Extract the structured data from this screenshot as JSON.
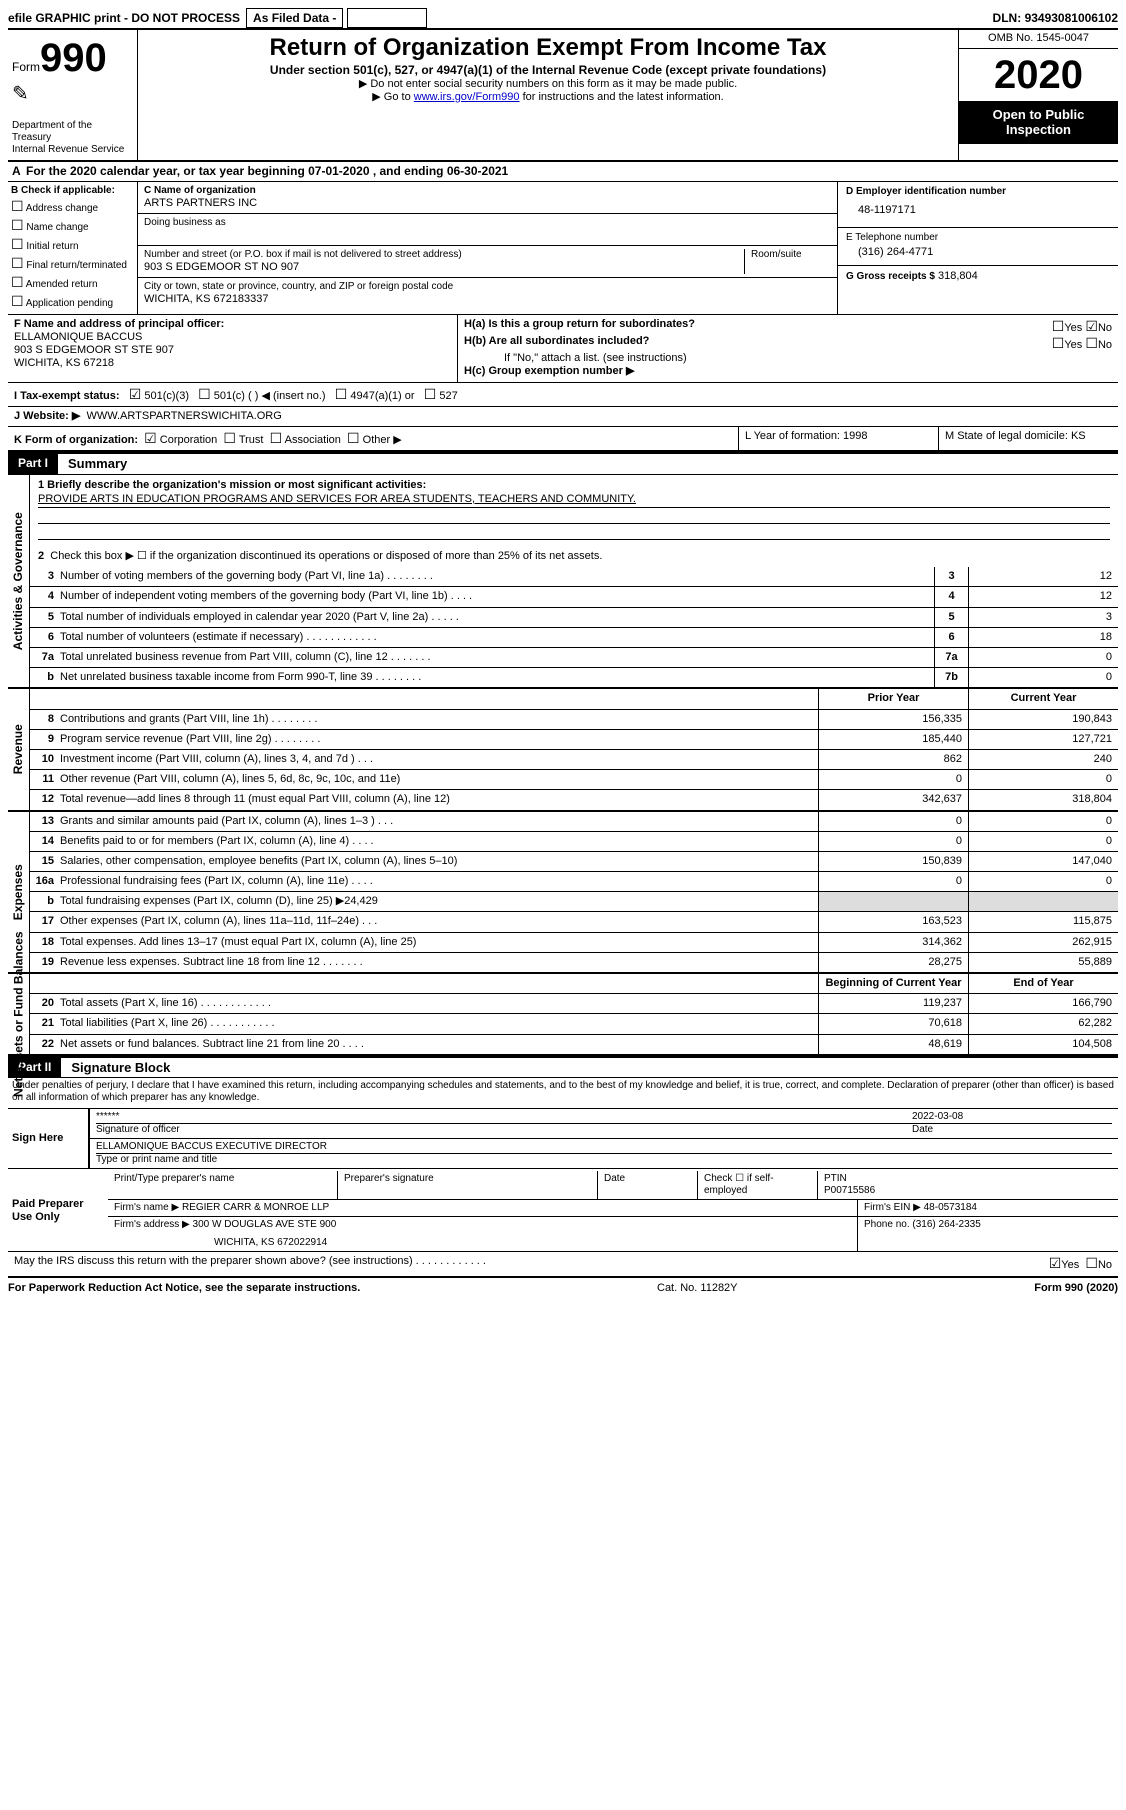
{
  "topbar": {
    "efile": "efile GRAPHIC print - DO NOT PROCESS",
    "asfiled": "As Filed Data -",
    "dln_label": "DLN:",
    "dln": "93493081006102"
  },
  "header": {
    "form_word": "Form",
    "form_num": "990",
    "dept": "Department of the Treasury",
    "irs": "Internal Revenue Service",
    "title": "Return of Organization Exempt From Income Tax",
    "subtitle": "Under section 501(c), 527, or 4947(a)(1) of the Internal Revenue Code (except private foundations)",
    "instr1": "▶ Do not enter social security numbers on this form as it may be made public.",
    "instr2": "▶ Go to www.irs.gov/Form990 for instructions and the latest information.",
    "omb": "OMB No. 1545-0047",
    "year": "2020",
    "open": "Open to Public Inspection"
  },
  "rowA": {
    "label": "A",
    "text": "For the 2020 calendar year, or tax year beginning 07-01-2020    , and ending 06-30-2021"
  },
  "B": {
    "label": "B Check if applicable:",
    "items": [
      "Address change",
      "Name change",
      "Initial return",
      "Final return/terminated",
      "Amended return",
      "Application pending"
    ]
  },
  "C": {
    "name_label": "C Name of organization",
    "name": "ARTS PARTNERS INC",
    "dba_label": "Doing business as",
    "dba": "",
    "addr_label": "Number and street (or P.O. box if mail is not delivered to street address)",
    "addr": "903 S EDGEMOOR ST NO 907",
    "room_label": "Room/suite",
    "city_label": "City or town, state or province, country, and ZIP or foreign postal code",
    "city": "WICHITA, KS  672183337"
  },
  "D": {
    "label": "D Employer identification number",
    "value": "48-1197171"
  },
  "E": {
    "label": "E Telephone number",
    "value": "(316) 264-4771"
  },
  "G": {
    "label": "G Gross receipts $",
    "value": "318,804"
  },
  "F": {
    "label": "F   Name and address of principal officer:",
    "name": "ELLAMONIQUE BACCUS",
    "addr": "903 S EDGEMOOR ST STE 907",
    "city": "WICHITA, KS  67218"
  },
  "H": {
    "a": "H(a)  Is this a group return for subordinates?",
    "b": "H(b)  Are all subordinates included?",
    "b_note": "If \"No,\" attach a list. (see instructions)",
    "c": "H(c)  Group exemption number ▶",
    "yes": "Yes",
    "no": "No"
  },
  "I": {
    "label": "I   Tax-exempt status:",
    "opt1": "501(c)(3)",
    "opt2": "501(c) (   ) ◀ (insert no.)",
    "opt3": "4947(a)(1) or",
    "opt4": "527"
  },
  "J": {
    "label": "J   Website: ▶",
    "value": "WWW.ARTSPARTNERSWICHITA.ORG"
  },
  "K": {
    "label": "K Form of organization:",
    "opts": [
      "Corporation",
      "Trust",
      "Association",
      "Other ▶"
    ],
    "L": "L Year of formation: 1998",
    "M": "M State of legal domicile: KS"
  },
  "part1": {
    "tag": "Part I",
    "name": "Summary"
  },
  "summary": {
    "line1_label": "1 Briefly describe the organization's mission or most significant activities:",
    "line1_value": "PROVIDE ARTS IN EDUCATION PROGRAMS AND SERVICES FOR AREA STUDENTS, TEACHERS AND COMMUNITY.",
    "line2": "Check this box ▶ ☐  if the organization discontinued its operations or disposed of more than 25% of its net assets.",
    "rows_top": [
      {
        "n": "3",
        "t": "Number of voting members of the governing body (Part VI, line 1a)  .   .   .   .   .   .   .   .",
        "b": "3",
        "v": "12"
      },
      {
        "n": "4",
        "t": "Number of independent voting members of the governing body (Part VI, line 1b)   .   .   .   .",
        "b": "4",
        "v": "12"
      },
      {
        "n": "5",
        "t": "Total number of individuals employed in calendar year 2020 (Part V, line 2a)   .   .   .   .   .",
        "b": "5",
        "v": "3"
      },
      {
        "n": "6",
        "t": "Total number of volunteers (estimate if necessary)  .   .   .   .   .   .   .   .   .   .   .   .",
        "b": "6",
        "v": "18"
      },
      {
        "n": "7a",
        "t": "Total unrelated business revenue from Part VIII, column (C), line 12  .   .   .   .   .   .   .",
        "b": "7a",
        "v": "0"
      },
      {
        "n": "b",
        "t": "Net unrelated business taxable income from Form 990-T, line 39   .   .   .   .   .   .   .   .",
        "b": "7b",
        "v": "0"
      }
    ],
    "col_prior": "Prior Year",
    "col_curr": "Current Year",
    "col_boc": "Beginning of Current Year",
    "col_eoy": "End of Year",
    "tabs": {
      "ag": "Activities & Governance",
      "rev": "Revenue",
      "exp": "Expenses",
      "na": "Net Assets or Fund Balances"
    },
    "revenue": [
      {
        "n": "8",
        "t": "Contributions and grants (Part VIII, line 1h)   .   .   .   .   .   .   .   .",
        "p": "156,335",
        "c": "190,843"
      },
      {
        "n": "9",
        "t": "Program service revenue (Part VIII, line 2g)  .   .   .   .   .   .   .   .",
        "p": "185,440",
        "c": "127,721"
      },
      {
        "n": "10",
        "t": "Investment income (Part VIII, column (A), lines 3, 4, and 7d )   .   .   .",
        "p": "862",
        "c": "240"
      },
      {
        "n": "11",
        "t": "Other revenue (Part VIII, column (A), lines 5, 6d, 8c, 9c, 10c, and 11e)",
        "p": "0",
        "c": "0"
      },
      {
        "n": "12",
        "t": "Total revenue—add lines 8 through 11 (must equal Part VIII, column (A), line 12)",
        "p": "342,637",
        "c": "318,804"
      }
    ],
    "expenses": [
      {
        "n": "13",
        "t": "Grants and similar amounts paid (Part IX, column (A), lines 1–3 )   .   .   .",
        "p": "0",
        "c": "0"
      },
      {
        "n": "14",
        "t": "Benefits paid to or for members (Part IX, column (A), line 4)   .   .   .   .",
        "p": "0",
        "c": "0"
      },
      {
        "n": "15",
        "t": "Salaries, other compensation, employee benefits (Part IX, column (A), lines 5–10)",
        "p": "150,839",
        "c": "147,040"
      },
      {
        "n": "16a",
        "t": "Professional fundraising fees (Part IX, column (A), line 11e)   .   .   .   .",
        "p": "0",
        "c": "0"
      },
      {
        "n": "b",
        "t": "Total fundraising expenses (Part IX, column (D), line 25) ▶24,429",
        "p": "",
        "c": ""
      },
      {
        "n": "17",
        "t": "Other expenses (Part IX, column (A), lines 11a–11d, 11f–24e)   .   .   .",
        "p": "163,523",
        "c": "115,875"
      },
      {
        "n": "18",
        "t": "Total expenses. Add lines 13–17 (must equal Part IX, column (A), line 25)",
        "p": "314,362",
        "c": "262,915"
      },
      {
        "n": "19",
        "t": "Revenue less expenses. Subtract line 18 from line 12 .   .   .   .   .   .   .",
        "p": "28,275",
        "c": "55,889"
      }
    ],
    "netassets": [
      {
        "n": "20",
        "t": "Total assets (Part X, line 16)  .   .   .   .   .   .   .   .   .   .   .   .",
        "p": "119,237",
        "c": "166,790"
      },
      {
        "n": "21",
        "t": "Total liabilities (Part X, line 26)  .   .   .   .   .   .   .   .   .   .   .",
        "p": "70,618",
        "c": "62,282"
      },
      {
        "n": "22",
        "t": "Net assets or fund balances. Subtract line 21 from line 20  .   .   .   .",
        "p": "48,619",
        "c": "104,508"
      }
    ]
  },
  "part2": {
    "tag": "Part II",
    "name": "Signature Block"
  },
  "perjury": "Under penalties of perjury, I declare that I have examined this return, including accompanying schedules and statements, and to the best of my knowledge and belief, it is true, correct, and complete. Declaration of preparer (other than officer) is based on all information of which preparer has any knowledge.",
  "sign": {
    "here": "Sign Here",
    "stars": "******",
    "sig_label": "Signature of officer",
    "date": "2022-03-08",
    "date_label": "Date",
    "name": "ELLAMONIQUE BACCUS  EXECUTIVE DIRECTOR",
    "name_label": "Type or print name and title"
  },
  "prep": {
    "here": "Paid Preparer Use Only",
    "print_label": "Print/Type preparer's name",
    "sig_label": "Preparer's signature",
    "date_label": "Date",
    "check_label": "Check ☐ if self-employed",
    "ptin_label": "PTIN",
    "ptin": "P00715586",
    "firm_label": "Firm's name    ▶",
    "firm": "REGIER CARR & MONROE LLP",
    "ein_label": "Firm's EIN ▶",
    "ein": "48-0573184",
    "addr_label": "Firm's address ▶",
    "addr": "300 W DOUGLAS AVE STE 900",
    "city": "WICHITA, KS  672022914",
    "phone_label": "Phone no.",
    "phone": "(316) 264-2335"
  },
  "discuss": {
    "text": "May the IRS discuss this return with the preparer shown above? (see instructions)  .   .   .   .   .   .   .   .   .   .   .   .",
    "yes": "Yes",
    "no": "No"
  },
  "footer": {
    "left": "For Paperwork Reduction Act Notice, see the separate instructions.",
    "mid": "Cat. No. 11282Y",
    "right": "Form 990 (2020)"
  }
}
